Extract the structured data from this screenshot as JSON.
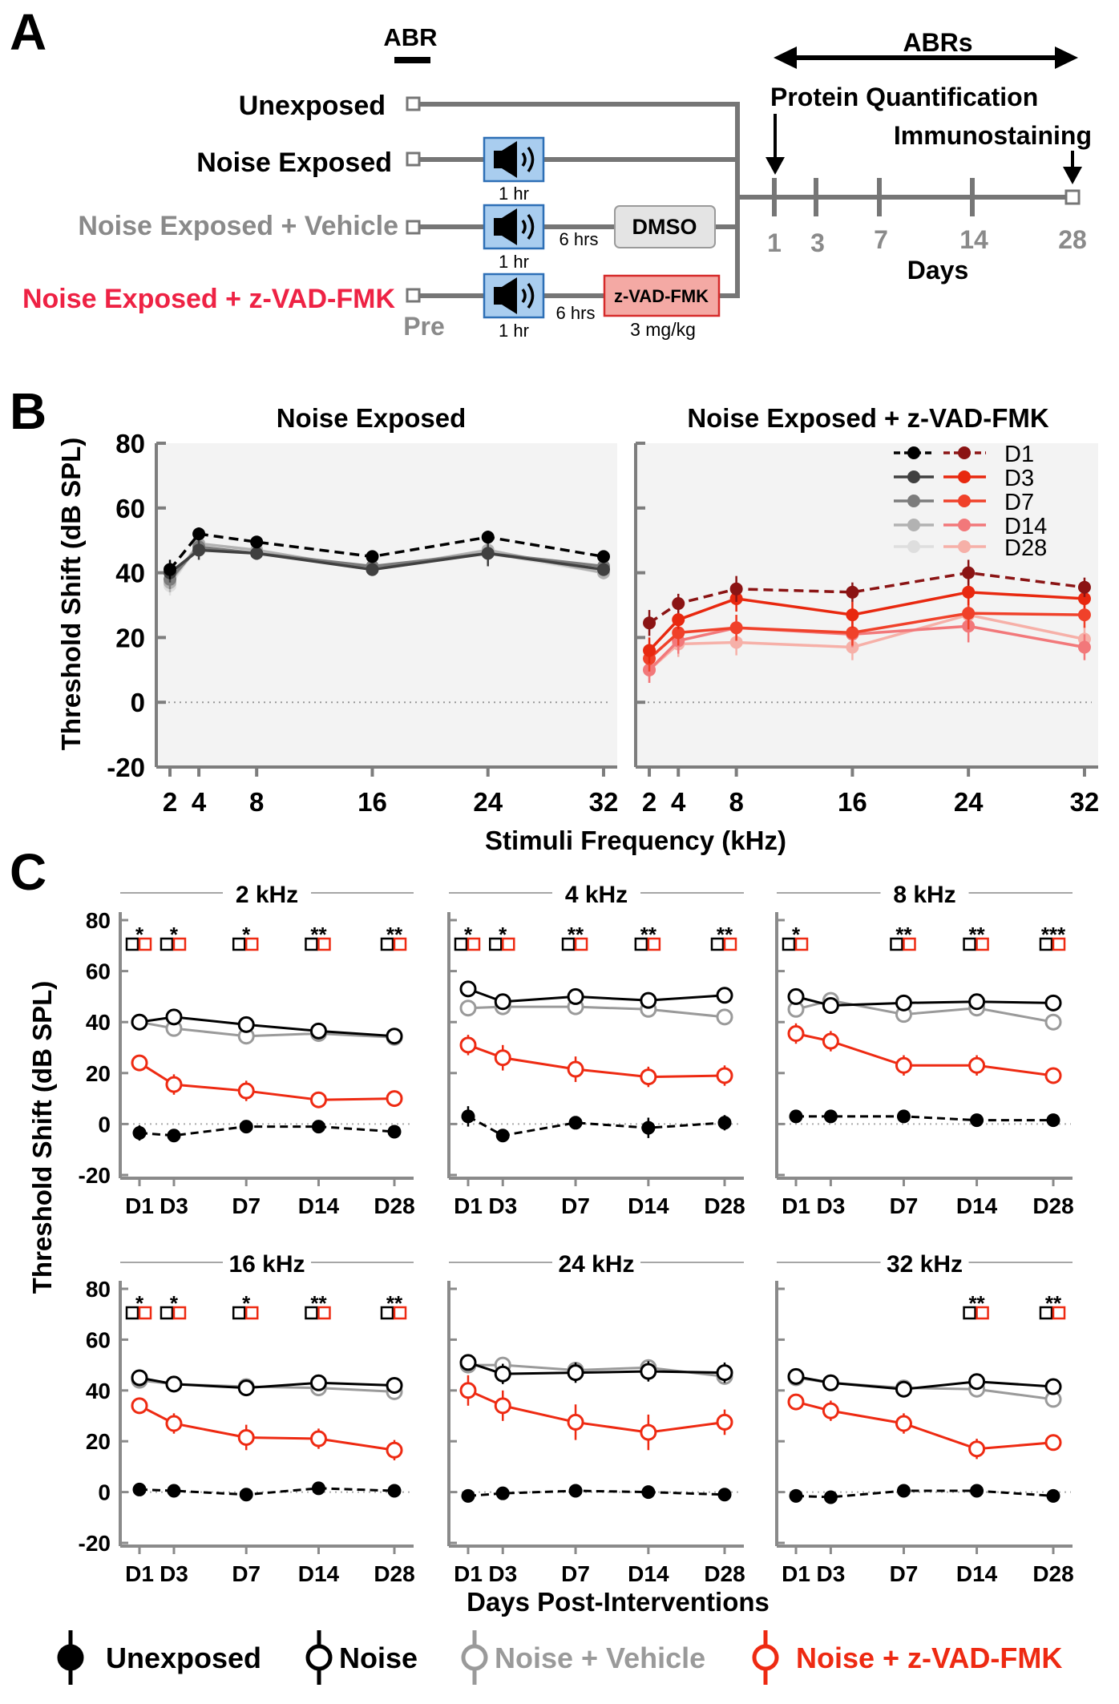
{
  "colors": {
    "black": "#000000",
    "noise": "#000000",
    "vehicle": "#9a9a9a",
    "zvad": "#ee2a12",
    "panelBg": "#f3f3f3",
    "speakerBox": "#a9cdef",
    "speakerBorder": "#2d6fb6",
    "dmsoBox": "#e4e4e4",
    "zvadBox": "#f4a9a4",
    "zvadBorder": "#d62a2a",
    "timeline": "#767676"
  },
  "panelA": {
    "label": "A",
    "abr_label": "ABR",
    "groups": [
      "Unexposed",
      "Noise Exposed",
      "Noise Exposed + Vehicle",
      "Noise Exposed + z-VAD-FMK"
    ],
    "one_hr": "1 hr",
    "six_hrs": "6 hrs",
    "dmso": "DMSO",
    "zvad": "z-VAD-FMK",
    "dose": "3 mg/kg",
    "pre": "Pre",
    "abrs": "ABRs",
    "protein": "Protein Quantification",
    "immuno": "Immunostaining",
    "days_label": "Days",
    "day_ticks": [
      "1",
      "3",
      "7",
      "14",
      "28"
    ]
  },
  "panelB": {
    "label": "B",
    "ylabel": "Threshold Shift (dB SPL)",
    "xlabel": "Stimuli Frequency (kHz)",
    "legend": [
      "D1",
      "D3",
      "D7",
      "D14",
      "D28"
    ]
  },
  "panelC": {
    "label": "C",
    "ylabel": "Threshold Shift (dB SPL)",
    "xlabel": "Days Post-Interventions",
    "legend": [
      "Unexposed",
      "Noise",
      "Noise + Vehicle",
      "Noise + z-VAD-FMK"
    ]
  },
  "chart_data": [
    {
      "type": "line",
      "title": "Noise Exposed",
      "xlabel": "Stimuli Frequency (kHz)",
      "ylabel": "Threshold Shift (dB SPL)",
      "x": [
        2,
        4,
        8,
        16,
        24,
        32
      ],
      "xlim": [
        1.5,
        32.5
      ],
      "ylim": [
        -20,
        80
      ],
      "yticks": [
        -20,
        0,
        20,
        40,
        60,
        80
      ],
      "series": [
        {
          "name": "D1",
          "values": [
            41,
            52,
            49.5,
            45,
            51,
            45
          ],
          "err": [
            3,
            2,
            1.5,
            1.5,
            2,
            1.5
          ],
          "color": "#000000",
          "dashed": true
        },
        {
          "name": "D3",
          "values": [
            40,
            47,
            46,
            41,
            46,
            41
          ],
          "err": [
            3,
            3,
            2,
            2,
            4,
            2
          ],
          "color": "#404040",
          "dashed": false
        },
        {
          "name": "D7",
          "values": [
            38,
            48,
            46,
            42,
            46,
            42
          ],
          "err": [
            3,
            2,
            2,
            2,
            3,
            2
          ],
          "color": "#7c7c7c",
          "dashed": false
        },
        {
          "name": "D14",
          "values": [
            37,
            49,
            47,
            41,
            47,
            40
          ],
          "err": [
            3,
            2,
            2,
            2,
            3,
            2
          ],
          "color": "#b2b2b2",
          "dashed": false
        },
        {
          "name": "D28",
          "values": [
            36,
            49,
            47,
            41,
            46,
            40
          ],
          "err": [
            3,
            2,
            2,
            2,
            3,
            2
          ],
          "color": "#dedede",
          "dashed": false
        }
      ]
    },
    {
      "type": "line",
      "title": "Noise Exposed + z-VAD-FMK",
      "xlabel": "Stimuli Frequency (kHz)",
      "x": [
        2,
        4,
        8,
        16,
        24,
        32
      ],
      "xlim": [
        1.5,
        32.5
      ],
      "ylim": [
        -20,
        80
      ],
      "series": [
        {
          "name": "D1",
          "values": [
            24.5,
            30.5,
            35,
            34,
            40,
            35.5
          ],
          "err": [
            4,
            3,
            4,
            3,
            4,
            3
          ],
          "color": "#8b1414",
          "dashed": true
        },
        {
          "name": "D3",
          "values": [
            16,
            25.5,
            32,
            27,
            34,
            32
          ],
          "err": [
            4,
            3,
            4,
            4,
            4,
            3
          ],
          "color": "#e8280f",
          "dashed": false
        },
        {
          "name": "D7",
          "values": [
            13.5,
            21.5,
            23,
            21.5,
            27.5,
            27
          ],
          "err": [
            4,
            4,
            4,
            4,
            5,
            4
          ],
          "color": "#f0412a",
          "dashed": false
        },
        {
          "name": "D14",
          "values": [
            10,
            19,
            23,
            21,
            23.5,
            17
          ],
          "err": [
            4,
            4,
            4,
            4,
            5,
            4
          ],
          "color": "#f2787a",
          "dashed": false
        },
        {
          "name": "D28",
          "values": [
            10,
            18,
            18.5,
            17,
            27,
            19.5
          ],
          "err": [
            4,
            4,
            4,
            4,
            5,
            4
          ],
          "color": "#f6b0a8",
          "dashed": false
        }
      ]
    },
    {
      "type": "line",
      "title": "2 kHz",
      "categories": [
        "D1",
        "D3",
        "D7",
        "D14",
        "D28"
      ],
      "x": [
        1,
        3,
        7,
        14,
        28
      ],
      "ylim": [
        -20,
        80
      ],
      "significance": [
        "*",
        "*",
        "*",
        "**",
        "**"
      ],
      "series": [
        {
          "name": "Unexposed",
          "values": [
            -3.5,
            -4.5,
            -1,
            -1,
            -3
          ],
          "err": [
            3,
            1,
            2,
            2,
            1
          ]
        },
        {
          "name": "Noise",
          "values": [
            40,
            42,
            39,
            36.5,
            34.5
          ],
          "err": [
            3,
            3,
            2,
            3,
            3
          ]
        },
        {
          "name": "Noise + Vehicle",
          "values": [
            40,
            37.5,
            34.5,
            35.5,
            34
          ],
          "err": [
            3,
            2,
            2,
            2,
            2
          ]
        },
        {
          "name": "Noise + z-VAD-FMK",
          "values": [
            24,
            15.5,
            13,
            9.5,
            10
          ],
          "err": [
            3,
            4,
            4,
            3,
            2
          ]
        }
      ]
    },
    {
      "type": "line",
      "title": "4 kHz",
      "categories": [
        "D1",
        "D3",
        "D7",
        "D14",
        "D28"
      ],
      "x": [
        1,
        3,
        7,
        14,
        28
      ],
      "ylim": [
        -20,
        80
      ],
      "significance": [
        "*",
        "*",
        "**",
        "**",
        "**"
      ],
      "series": [
        {
          "name": "Unexposed",
          "values": [
            3,
            -4.5,
            0.5,
            -1.5,
            0.5
          ],
          "err": [
            4,
            1,
            2,
            4,
            3
          ]
        },
        {
          "name": "Noise",
          "values": [
            53,
            48,
            50,
            48.5,
            50.5
          ],
          "err": [
            2,
            3,
            3,
            3,
            3
          ]
        },
        {
          "name": "Noise + Vehicle",
          "values": [
            45.5,
            46,
            46,
            45,
            42
          ],
          "err": [
            2,
            2,
            2,
            2,
            2
          ]
        },
        {
          "name": "Noise + z-VAD-FMK",
          "values": [
            31,
            26,
            21.5,
            18.5,
            19
          ],
          "err": [
            4,
            5,
            5,
            4,
            4
          ]
        }
      ]
    },
    {
      "type": "line",
      "title": "8 kHz",
      "categories": [
        "D1",
        "D3",
        "D7",
        "D14",
        "D28"
      ],
      "x": [
        1,
        3,
        7,
        14,
        28
      ],
      "ylim": [
        -20,
        80
      ],
      "significance": [
        "*",
        "",
        "**",
        "**",
        "***"
      ],
      "series": [
        {
          "name": "Unexposed",
          "values": [
            3,
            3,
            3,
            1.5,
            1.5
          ],
          "err": [
            1,
            1,
            2,
            1,
            1
          ]
        },
        {
          "name": "Noise",
          "values": [
            50,
            46.5,
            47.5,
            48,
            47.5
          ],
          "err": [
            2,
            3,
            2,
            2,
            2
          ]
        },
        {
          "name": "Noise + Vehicle",
          "values": [
            45,
            48.5,
            43,
            45.5,
            40
          ],
          "err": [
            2,
            2,
            2,
            2,
            2
          ]
        },
        {
          "name": "Noise + z-VAD-FMK",
          "values": [
            35.5,
            32.5,
            23,
            23,
            19
          ],
          "err": [
            4,
            4,
            4,
            4,
            3
          ]
        }
      ]
    },
    {
      "type": "line",
      "title": "16 kHz",
      "categories": [
        "D1",
        "D3",
        "D7",
        "D14",
        "D28"
      ],
      "x": [
        1,
        3,
        7,
        14,
        28
      ],
      "ylim": [
        -20,
        80
      ],
      "significance": [
        "*",
        "*",
        "*",
        "**",
        "**"
      ],
      "series": [
        {
          "name": "Unexposed",
          "values": [
            1,
            0.5,
            -1,
            1.5,
            0.5
          ],
          "err": [
            1,
            1,
            1,
            1,
            1
          ]
        },
        {
          "name": "Noise",
          "values": [
            45,
            42.5,
            41,
            43,
            42
          ],
          "err": [
            2,
            2,
            2,
            2,
            2
          ]
        },
        {
          "name": "Noise + Vehicle",
          "values": [
            44,
            42.5,
            41.5,
            41,
            39.5
          ],
          "err": [
            2,
            2,
            2,
            2,
            2
          ]
        },
        {
          "name": "Noise + z-VAD-FMK",
          "values": [
            34,
            27,
            21.5,
            21,
            16.5
          ],
          "err": [
            3,
            4,
            5,
            4,
            4
          ]
        }
      ]
    },
    {
      "type": "line",
      "title": "24 kHz",
      "categories": [
        "D1",
        "D3",
        "D7",
        "D14",
        "D28"
      ],
      "x": [
        1,
        3,
        7,
        14,
        28
      ],
      "ylim": [
        -20,
        80
      ],
      "significance": [
        "",
        "",
        "",
        "",
        ""
      ],
      "series": [
        {
          "name": "Unexposed",
          "values": [
            -1.5,
            -0.5,
            0.5,
            0,
            -1
          ],
          "err": [
            1,
            1,
            1,
            1,
            1
          ]
        },
        {
          "name": "Noise",
          "values": [
            51,
            46.5,
            47,
            47.5,
            47
          ],
          "err": [
            2,
            4,
            4,
            4,
            4
          ]
        },
        {
          "name": "Noise + Vehicle",
          "values": [
            50,
            50,
            48,
            49,
            45.5
          ],
          "err": [
            2,
            2,
            2,
            2,
            2
          ]
        },
        {
          "name": "Noise + z-VAD-FMK",
          "values": [
            40,
            34,
            27.5,
            23.5,
            27.5
          ],
          "err": [
            6,
            6,
            7,
            7,
            5
          ]
        }
      ]
    },
    {
      "type": "line",
      "title": "32 kHz",
      "categories": [
        "D1",
        "D3",
        "D7",
        "D14",
        "D28"
      ],
      "x": [
        1,
        3,
        7,
        14,
        28
      ],
      "ylim": [
        -20,
        80
      ],
      "significance": [
        "",
        "",
        "",
        "**",
        "**"
      ],
      "series": [
        {
          "name": "Unexposed",
          "values": [
            -1.5,
            -2,
            0.5,
            0.5,
            -1.5
          ],
          "err": [
            1,
            1,
            1,
            1,
            1
          ]
        },
        {
          "name": "Noise",
          "values": [
            45.5,
            43,
            40.5,
            43.5,
            41.5
          ],
          "err": [
            2,
            2,
            2,
            3,
            3
          ]
        },
        {
          "name": "Noise + Vehicle",
          "values": [
            45,
            43,
            41,
            40.5,
            36.5
          ],
          "err": [
            2,
            2,
            2,
            2,
            2
          ]
        },
        {
          "name": "Noise + z-VAD-FMK",
          "values": [
            35.5,
            32,
            27,
            17,
            19.5
          ],
          "err": [
            3,
            4,
            4,
            4,
            2
          ]
        }
      ]
    }
  ]
}
